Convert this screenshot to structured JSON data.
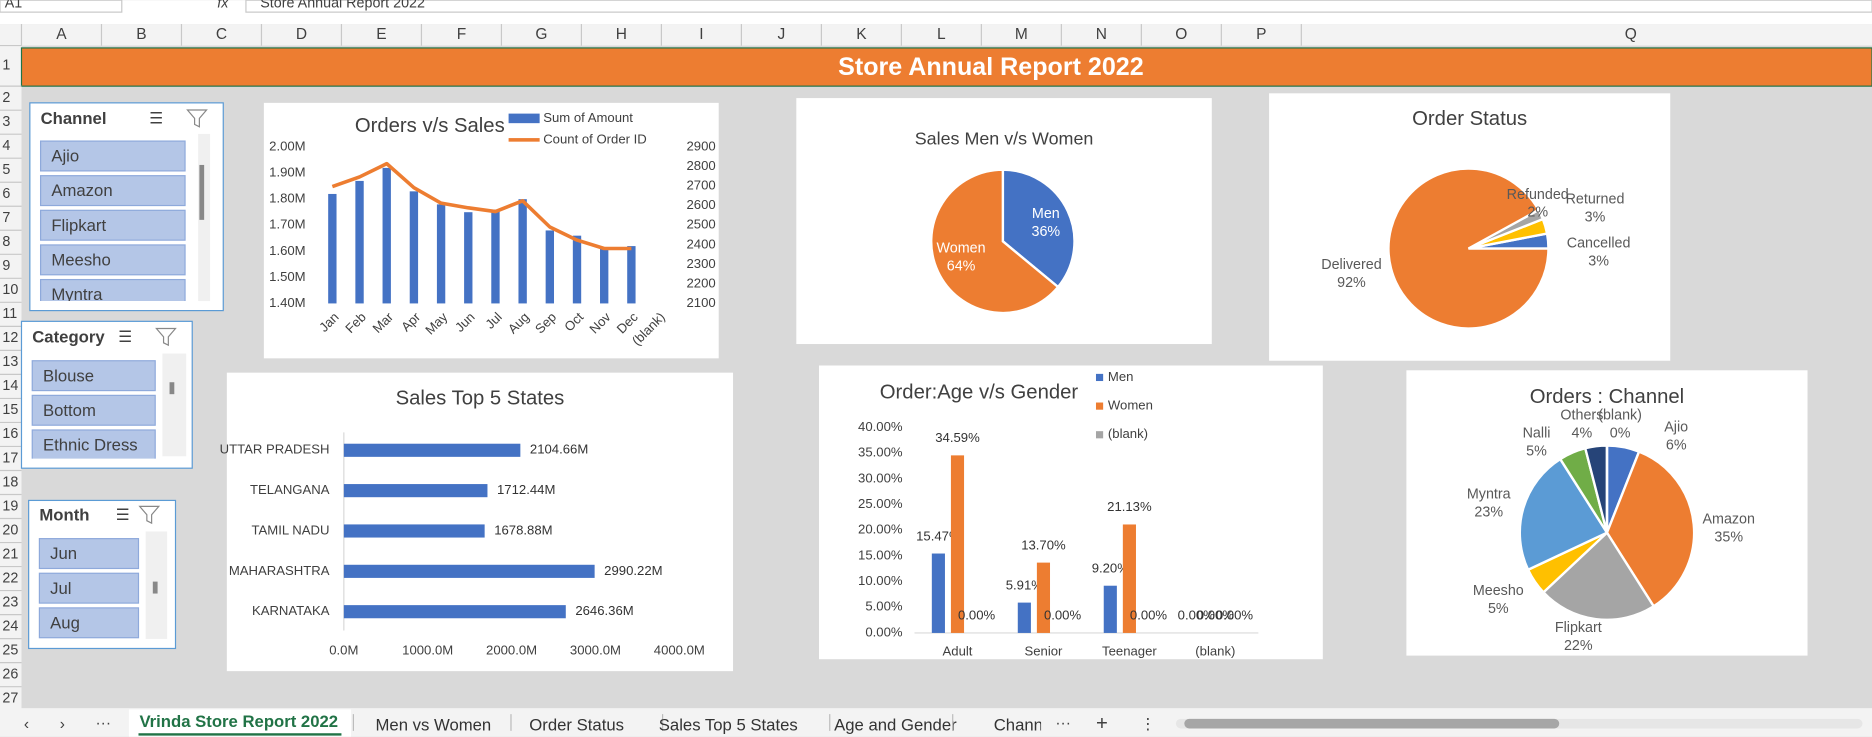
{
  "formula_bar": {
    "name_box": "A1",
    "formula": "Store Annual Report 2022"
  },
  "columns": [
    "A",
    "B",
    "C",
    "D",
    "E",
    "F",
    "G",
    "H",
    "I",
    "J",
    "K",
    "L",
    "M",
    "N",
    "O",
    "P",
    "Q"
  ],
  "rows": [
    1,
    2,
    3,
    4,
    5,
    6,
    7,
    8,
    9,
    10,
    11,
    12,
    13,
    14,
    15,
    16,
    17,
    18,
    19,
    20,
    21,
    22,
    23,
    24,
    25,
    26,
    27
  ],
  "banner": {
    "title": "Store Annual Report 2022"
  },
  "slicers": [
    {
      "title": "Channel",
      "items": [
        "Ajio",
        "Amazon",
        "Flipkart",
        "Meesho",
        "Myntra"
      ]
    },
    {
      "title": "Category",
      "items": [
        "Blouse",
        "Bottom",
        "Ethnic Dress"
      ]
    },
    {
      "title": "Month",
      "items": [
        "Jun",
        "Jul",
        "Aug"
      ]
    }
  ],
  "chart_data": [
    {
      "type": "combo",
      "title": "Orders v/s Sales",
      "categories": [
        "Jan",
        "Feb",
        "Mar",
        "Apr",
        "May",
        "Jun",
        "Jul",
        "Aug",
        "Sep",
        "Oct",
        "Nov",
        "Dec",
        "(blank)"
      ],
      "series": [
        {
          "name": "Sum of Amount",
          "type": "bar",
          "color": "#4472c4",
          "values": [
            1.82,
            1.87,
            1.92,
            1.83,
            1.78,
            1.75,
            1.76,
            1.8,
            1.68,
            1.66,
            1.61,
            1.62,
            null
          ]
        },
        {
          "name": "Count of Order ID",
          "type": "line",
          "axis": "y2",
          "color": "#ed7d31",
          "values": [
            2698,
            2747,
            2815,
            2692,
            2613,
            2589,
            2570,
            2625,
            2491,
            2424,
            2381,
            2381,
            null
          ]
        }
      ],
      "ylim": [
        1.4,
        2.0
      ],
      "yticks": [
        {
          "value": 1.4,
          "label": "1.40M"
        },
        {
          "value": 1.5,
          "label": "1.50M"
        },
        {
          "value": 1.6,
          "label": "1.60M"
        },
        {
          "value": 1.7,
          "label": "1.70M"
        },
        {
          "value": 1.8,
          "label": "1.80M"
        },
        {
          "value": 1.9,
          "label": "1.90M"
        },
        {
          "value": 2.0,
          "label": "2.00M"
        }
      ],
      "y2lim": [
        2100,
        2900
      ],
      "y2ticks": [
        2100,
        2200,
        2300,
        2400,
        2500,
        2600,
        2700,
        2800,
        2900
      ]
    },
    {
      "type": "pie",
      "title": "Sales Men v/s Women",
      "categories": [
        "Men",
        "Women"
      ],
      "values": [
        36,
        64
      ],
      "value_labels": [
        "36%",
        "64%"
      ],
      "colors": [
        "#4472c4",
        "#ed7d31"
      ]
    },
    {
      "type": "pie",
      "title": "Order Status",
      "categories": [
        "Cancelled",
        "Returned",
        "Refunded",
        "Delivered"
      ],
      "values": [
        3,
        3,
        2,
        92
      ],
      "value_labels": [
        "3%",
        "3%",
        "2%",
        "92%"
      ],
      "colors": [
        "#4472c4",
        "#ffc000",
        "#a5a5a5",
        "#ed7d31"
      ]
    },
    {
      "type": "hbar",
      "title": "Sales Top 5 States",
      "categories": [
        "UTTAR PRADESH",
        "TELANGANA",
        "TAMIL NADU",
        "MAHARASHTRA",
        "KARNATAKA"
      ],
      "values": [
        2104.66,
        1712.44,
        1678.88,
        2990.22,
        2646.36
      ],
      "value_labels": [
        "2104.66M",
        "1712.44M",
        "1678.88M",
        "2990.22M",
        "2646.36M"
      ],
      "color": "#4472c4",
      "xlim": [
        0,
        4000
      ],
      "xticks": [
        {
          "value": 0,
          "label": "0.0M"
        },
        {
          "value": 1000,
          "label": "1000.0M"
        },
        {
          "value": 2000,
          "label": "2000.0M"
        },
        {
          "value": 3000,
          "label": "3000.0M"
        },
        {
          "value": 4000,
          "label": "4000.0M"
        }
      ]
    },
    {
      "type": "bar",
      "title": "Order:Age v/s Gender",
      "categories": [
        "Adult",
        "Senior",
        "Teenager",
        "(blank)"
      ],
      "series": [
        {
          "name": "Men",
          "color": "#4472c4",
          "values": [
            15.47,
            5.91,
            9.2,
            0
          ],
          "value_labels": [
            "15.47%",
            "5.91%",
            "9.20%",
            "0.00%"
          ]
        },
        {
          "name": "Women",
          "color": "#ed7d31",
          "values": [
            34.59,
            13.7,
            21.13,
            0
          ],
          "value_labels": [
            "34.59%",
            "13.70%",
            "21.13%",
            "0.00%"
          ]
        },
        {
          "name": "(blank)",
          "color": "#a5a5a5",
          "values": [
            0,
            0,
            0,
            0
          ],
          "value_labels": [
            "0.00%",
            "0.00%",
            "0.00%",
            "0.00%"
          ]
        }
      ],
      "ylim": [
        0,
        40
      ],
      "yticks": [
        {
          "value": 0,
          "label": "0.00%"
        },
        {
          "value": 5,
          "label": "5.00%"
        },
        {
          "value": 10,
          "label": "10.00%"
        },
        {
          "value": 15,
          "label": "15.00%"
        },
        {
          "value": 20,
          "label": "20.00%"
        },
        {
          "value": 25,
          "label": "25.00%"
        },
        {
          "value": 30,
          "label": "30.00%"
        },
        {
          "value": 35,
          "label": "35.00%"
        },
        {
          "value": 40,
          "label": "40.00%"
        }
      ]
    },
    {
      "type": "pie",
      "title": "Orders : Channel",
      "categories": [
        "Ajio",
        "Amazon",
        "Flipkart",
        "Meesho",
        "Myntra",
        "Nalli",
        "Others",
        "(blank)"
      ],
      "values": [
        6,
        35,
        22,
        5,
        23,
        5,
        4,
        0
      ],
      "value_labels": [
        "6%",
        "35%",
        "22%",
        "5%",
        "23%",
        "5%",
        "4%",
        "0%"
      ],
      "colors": [
        "#4472c4",
        "#ed7d31",
        "#a5a5a5",
        "#ffc000",
        "#5b9bd5",
        "#70ad47",
        "#264478",
        "#9e480e"
      ]
    }
  ],
  "sheet_tabs": [
    "Vrinda Store Report 2022",
    "Men vs Women",
    "Order Status",
    "Sales Top 5 States",
    "Age and Gender",
    "Chann"
  ]
}
